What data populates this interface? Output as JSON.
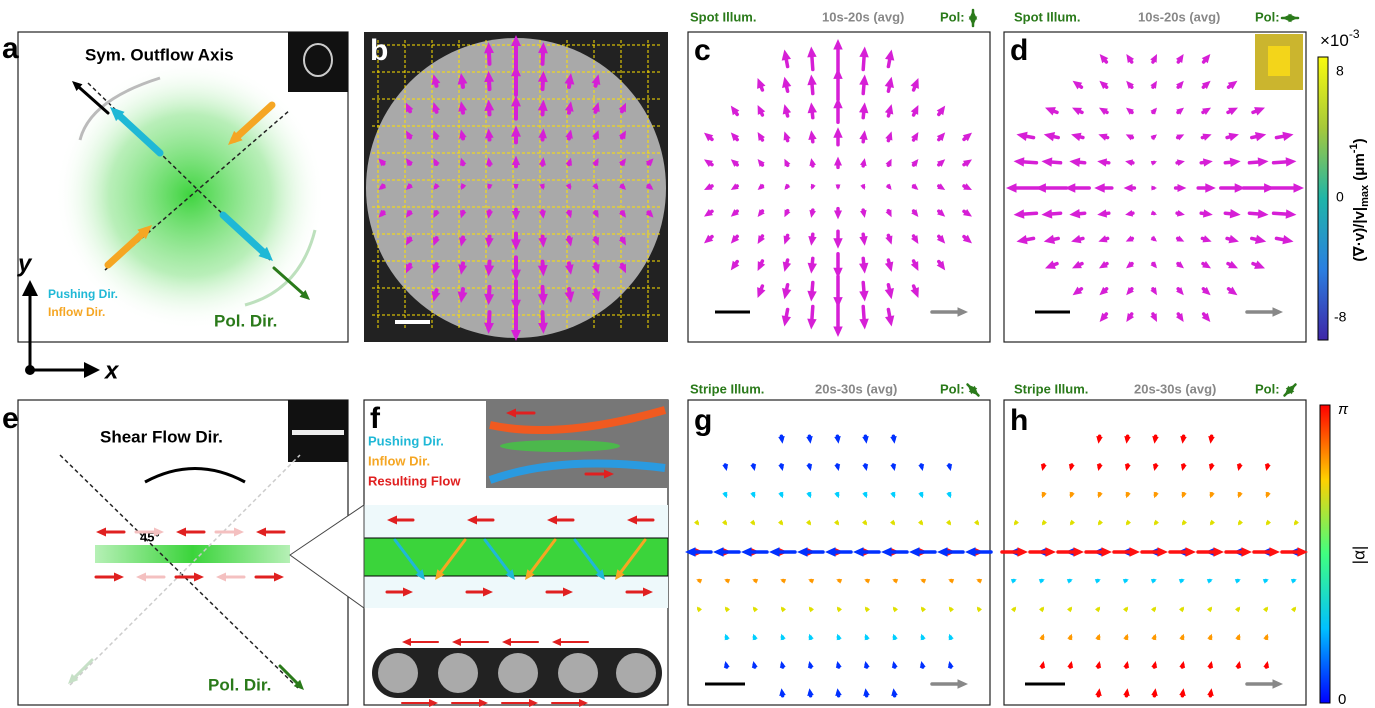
{
  "axes": {
    "x": "x",
    "y": "y"
  },
  "panels": {
    "a": {
      "label": "a",
      "title": "Sym. Outflow Axis",
      "legend": [
        "Pushing Dir.",
        "Inflow Dir."
      ],
      "pol": "Pol. Dir."
    },
    "b": {
      "label": "b"
    },
    "c": {
      "label": "c",
      "header": {
        "illum": "Spot Illum.",
        "time": "10s-20s (avg)",
        "pol": "Pol:"
      }
    },
    "d": {
      "label": "d",
      "header": {
        "illum": "Spot Illum.",
        "time": "10s-20s (avg)",
        "pol": "Pol:"
      },
      "colorbar": {
        "multiplier": "×10",
        "exponent": "-3",
        "ticks": [
          "8",
          "0",
          "-8"
        ],
        "label": {
          "main": "(∇·v)/|v|",
          "sub": "max",
          "unit": " (μm",
          "unit_sup": "-1",
          "close": ")"
        }
      }
    },
    "e": {
      "label": "e",
      "title": "Shear Flow Dir.",
      "angle": "45°",
      "pol": "Pol. Dir."
    },
    "f": {
      "label": "f",
      "legend": [
        "Pushing Dir.",
        "Inflow Dir.",
        "Resulting Flow"
      ]
    },
    "g": {
      "label": "g",
      "header": {
        "illum": "Stripe Illum.",
        "time": "20s-30s (avg)",
        "pol": "Pol:"
      }
    },
    "h": {
      "label": "h",
      "header": {
        "illum": "Stripe Illum.",
        "time": "20s-30s (avg)",
        "pol": "Pol:"
      },
      "colorbar": {
        "ticks": [
          "π",
          "0"
        ],
        "label": "|α|"
      }
    }
  }
}
